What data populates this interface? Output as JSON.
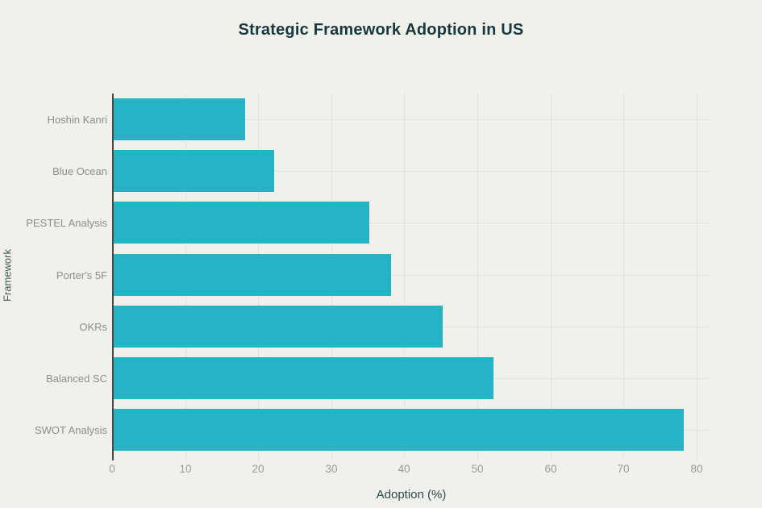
{
  "chart_data": {
    "type": "bar",
    "orientation": "horizontal",
    "title": "Strategic Framework Adoption in US",
    "xlabel": "Adoption (%)",
    "ylabel": "Framework",
    "categories_top_to_bottom": [
      "Hoshin Kanri",
      "Blue Ocean",
      "PESTEL Analysis",
      "Porter's 5F",
      "OKRs",
      "Balanced SC",
      "SWOT Analysis"
    ],
    "values": [
      18,
      22,
      35,
      38,
      45,
      52,
      78
    ],
    "xticks": [
      0,
      10,
      20,
      30,
      40,
      50,
      60,
      70,
      80
    ],
    "xlim": [
      0,
      81.9
    ],
    "grid": true,
    "legend": "none"
  },
  "colors": {
    "background": "#f0f1eb",
    "bar": "#25b3c6",
    "grid": "#e2e3dd",
    "axis_line": "#4a4c4c",
    "title_text": "#17383e",
    "axis_title_text": "#2e494c",
    "tick_label_text": "#9a9b97",
    "category_label_text": "#8b8d8e"
  }
}
